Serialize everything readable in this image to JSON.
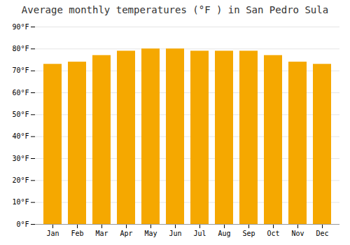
{
  "chart_data": {
    "type": "bar",
    "title": "Average monthly temperatures (°F ) in San Pedro Sula",
    "categories": [
      "Jan",
      "Feb",
      "Mar",
      "Apr",
      "May",
      "Jun",
      "Jul",
      "Aug",
      "Sep",
      "Oct",
      "Nov",
      "Dec"
    ],
    "values": [
      73,
      74,
      77,
      79,
      80,
      80,
      79,
      79,
      79,
      77,
      74,
      73
    ],
    "color": "#F5A800",
    "ylim": [
      0,
      90
    ],
    "yticks": [
      {
        "value": 0,
        "label": "0°F"
      },
      {
        "value": 10,
        "label": "10°F"
      },
      {
        "value": 20,
        "label": "20°F"
      },
      {
        "value": 30,
        "label": "30°F"
      },
      {
        "value": 40,
        "label": "40°F"
      },
      {
        "value": 50,
        "label": "50°F"
      },
      {
        "value": 60,
        "label": "60°F"
      },
      {
        "value": 70,
        "label": "70°F"
      },
      {
        "value": 80,
        "label": "80°F"
      },
      {
        "value": 90,
        "label": "90°F"
      }
    ],
    "grid": true
  }
}
